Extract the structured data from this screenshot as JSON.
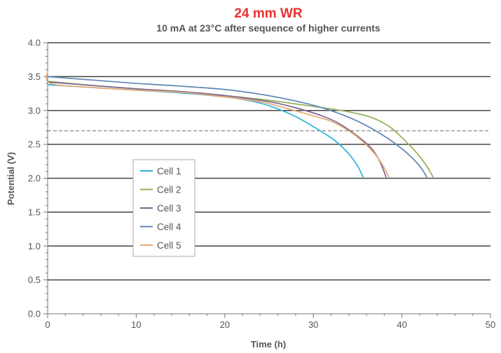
{
  "chart_data": {
    "type": "line",
    "title": "24 mm WR",
    "subtitle": "10 mA at 23°C after sequence of higher currents",
    "xlabel": "Time (h)",
    "ylabel": "Potential (V)",
    "xlim": [
      0,
      50
    ],
    "ylim": [
      0,
      4
    ],
    "x_ticks": [
      0,
      10,
      20,
      30,
      40,
      50
    ],
    "y_ticks": [
      0.0,
      0.5,
      1.0,
      1.5,
      2.0,
      2.5,
      3.0,
      3.5,
      4.0
    ],
    "x_tick_labels": [
      "0",
      "10",
      "20",
      "30",
      "40",
      "50"
    ],
    "y_tick_labels": [
      "0.0",
      "0.5",
      "1.0",
      "1.5",
      "2.0",
      "2.5",
      "3.0",
      "3.5",
      "4.0"
    ],
    "grid": "horizontal",
    "legend_position": "center-left",
    "reference_line": {
      "y": 2.7,
      "style": "dashed"
    },
    "colors": {
      "title": "#e8322f",
      "grid": "#444444",
      "reference": "#888888"
    },
    "series": [
      {
        "name": "Cell 1",
        "color": "#2ab3d8",
        "points": [
          [
            0,
            3.38
          ],
          [
            5,
            3.34
          ],
          [
            10,
            3.3
          ],
          [
            15,
            3.26
          ],
          [
            20,
            3.2
          ],
          [
            23,
            3.14
          ],
          [
            25,
            3.07
          ],
          [
            27,
            2.97
          ],
          [
            29,
            2.84
          ],
          [
            31,
            2.68
          ],
          [
            32.5,
            2.55
          ],
          [
            34,
            2.36
          ],
          [
            35,
            2.18
          ],
          [
            35.6,
            2.02
          ]
        ]
      },
      {
        "name": "Cell 2",
        "color": "#94b056",
        "points": [
          [
            0,
            3.43
          ],
          [
            5,
            3.37
          ],
          [
            10,
            3.32
          ],
          [
            15,
            3.27
          ],
          [
            20,
            3.22
          ],
          [
            25,
            3.15
          ],
          [
            30,
            3.06
          ],
          [
            34,
            2.98
          ],
          [
            36.5,
            2.9
          ],
          [
            38.5,
            2.77
          ],
          [
            40,
            2.6
          ],
          [
            41.5,
            2.4
          ],
          [
            42.7,
            2.2
          ],
          [
            43.5,
            2.02
          ]
        ]
      },
      {
        "name": "Cell 3",
        "color": "#7b6591",
        "points": [
          [
            0,
            3.42
          ],
          [
            5,
            3.37
          ],
          [
            10,
            3.32
          ],
          [
            15,
            3.28
          ],
          [
            20,
            3.22
          ],
          [
            25,
            3.13
          ],
          [
            28,
            3.04
          ],
          [
            31,
            2.92
          ],
          [
            33,
            2.8
          ],
          [
            35,
            2.62
          ],
          [
            36.5,
            2.45
          ],
          [
            37.5,
            2.25
          ],
          [
            38.2,
            2.02
          ]
        ]
      },
      {
        "name": "Cell 4",
        "color": "#5e86b5",
        "points": [
          [
            0,
            3.5
          ],
          [
            5,
            3.45
          ],
          [
            10,
            3.4
          ],
          [
            15,
            3.36
          ],
          [
            20,
            3.31
          ],
          [
            24,
            3.24
          ],
          [
            28,
            3.14
          ],
          [
            31,
            3.04
          ],
          [
            34,
            2.9
          ],
          [
            36.5,
            2.74
          ],
          [
            38.5,
            2.58
          ],
          [
            40.5,
            2.38
          ],
          [
            42,
            2.18
          ],
          [
            42.8,
            2.02
          ]
        ]
      },
      {
        "name": "Cell 5",
        "color": "#e8a872",
        "points": [
          [
            0,
            3.58
          ],
          [
            0.3,
            3.4
          ],
          [
            5,
            3.34
          ],
          [
            10,
            3.3
          ],
          [
            15,
            3.27
          ],
          [
            20,
            3.2
          ],
          [
            24,
            3.13
          ],
          [
            27,
            3.03
          ],
          [
            30,
            2.92
          ],
          [
            32,
            2.84
          ],
          [
            34,
            2.7
          ],
          [
            35.5,
            2.55
          ],
          [
            36.8,
            2.38
          ],
          [
            37.8,
            2.2
          ],
          [
            38.5,
            2.02
          ]
        ]
      }
    ]
  }
}
